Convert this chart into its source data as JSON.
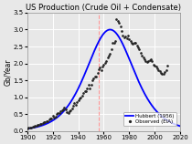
{
  "title": "US Production (Crude Oil + Condensate)",
  "ylabel": "Gb/Year",
  "xlim": [
    1900,
    2020
  ],
  "ylim": [
    0,
    3.5
  ],
  "yticks": [
    0,
    0.5,
    1,
    1.5,
    2,
    2.5,
    3,
    3.5
  ],
  "xticks": [
    1900,
    1920,
    1940,
    1960,
    1980,
    2000,
    2020
  ],
  "hubbert_color": "#0000FF",
  "observed_color": "#222222",
  "vline_color": "#FF9999",
  "vline_x": 1956,
  "background_color": "#e8e8e8",
  "grid_color": "#ffffff",
  "legend_labels": [
    "Hubbert (1956)",
    "Observed (EIA)"
  ],
  "title_fontsize": 6.0,
  "label_fontsize": 5.5,
  "tick_fontsize": 5,
  "hubbert_peak_year": 1965,
  "hubbert_peak_value": 3.0,
  "hubbert_Qtotal": 150.0,
  "observed_data": [
    [
      1900,
      0.08
    ],
    [
      1901,
      0.09
    ],
    [
      1902,
      0.1
    ],
    [
      1903,
      0.11
    ],
    [
      1904,
      0.12
    ],
    [
      1905,
      0.13
    ],
    [
      1906,
      0.14
    ],
    [
      1907,
      0.16
    ],
    [
      1908,
      0.17
    ],
    [
      1909,
      0.18
    ],
    [
      1910,
      0.21
    ],
    [
      1911,
      0.22
    ],
    [
      1912,
      0.23
    ],
    [
      1913,
      0.25
    ],
    [
      1914,
      0.27
    ],
    [
      1915,
      0.28
    ],
    [
      1916,
      0.3
    ],
    [
      1917,
      0.33
    ],
    [
      1918,
      0.36
    ],
    [
      1919,
      0.38
    ],
    [
      1920,
      0.44
    ],
    [
      1921,
      0.4
    ],
    [
      1922,
      0.43
    ],
    [
      1923,
      0.51
    ],
    [
      1924,
      0.53
    ],
    [
      1925,
      0.54
    ],
    [
      1926,
      0.58
    ],
    [
      1927,
      0.62
    ],
    [
      1928,
      0.64
    ],
    [
      1929,
      0.68
    ],
    [
      1930,
      0.64
    ],
    [
      1931,
      0.57
    ],
    [
      1932,
      0.54
    ],
    [
      1933,
      0.58
    ],
    [
      1934,
      0.61
    ],
    [
      1935,
      0.67
    ],
    [
      1936,
      0.74
    ],
    [
      1937,
      0.82
    ],
    [
      1938,
      0.78
    ],
    [
      1939,
      0.85
    ],
    [
      1940,
      0.9
    ],
    [
      1941,
      0.95
    ],
    [
      1942,
      0.99
    ],
    [
      1943,
      1.05
    ],
    [
      1944,
      1.13
    ],
    [
      1945,
      1.17
    ],
    [
      1946,
      1.19
    ],
    [
      1947,
      1.27
    ],
    [
      1948,
      1.36
    ],
    [
      1949,
      1.25
    ],
    [
      1950,
      1.37
    ],
    [
      1951,
      1.51
    ],
    [
      1952,
      1.55
    ],
    [
      1953,
      1.61
    ],
    [
      1954,
      1.61
    ],
    [
      1955,
      1.73
    ],
    [
      1956,
      1.83
    ],
    [
      1957,
      1.87
    ],
    [
      1958,
      1.81
    ],
    [
      1959,
      1.92
    ],
    [
      1960,
      1.97
    ],
    [
      1961,
      2.02
    ],
    [
      1962,
      2.08
    ],
    [
      1963,
      2.17
    ],
    [
      1964,
      2.22
    ],
    [
      1965,
      2.29
    ],
    [
      1966,
      2.43
    ],
    [
      1967,
      2.6
    ],
    [
      1968,
      2.61
    ],
    [
      1969,
      2.65
    ],
    [
      1970,
      3.3
    ],
    [
      1971,
      3.25
    ],
    [
      1972,
      3.2
    ],
    [
      1973,
      3.1
    ],
    [
      1974,
      2.95
    ],
    [
      1975,
      2.82
    ],
    [
      1976,
      2.78
    ],
    [
      1977,
      2.8
    ],
    [
      1978,
      2.75
    ],
    [
      1979,
      2.82
    ],
    [
      1980,
      2.72
    ],
    [
      1981,
      2.65
    ],
    [
      1982,
      2.62
    ],
    [
      1983,
      2.58
    ],
    [
      1984,
      2.62
    ],
    [
      1985,
      2.62
    ],
    [
      1986,
      2.52
    ],
    [
      1987,
      2.47
    ],
    [
      1988,
      2.43
    ],
    [
      1989,
      2.31
    ],
    [
      1990,
      2.23
    ],
    [
      1991,
      2.18
    ],
    [
      1992,
      2.12
    ],
    [
      1993,
      2.07
    ],
    [
      1994,
      2.05
    ],
    [
      1995,
      2.08
    ],
    [
      1996,
      2.1
    ],
    [
      1997,
      2.13
    ],
    [
      1998,
      2.08
    ],
    [
      1999,
      1.95
    ],
    [
      2000,
      1.93
    ],
    [
      2001,
      1.9
    ],
    [
      2002,
      1.85
    ],
    [
      2003,
      1.8
    ],
    [
      2004,
      1.78
    ],
    [
      2005,
      1.72
    ],
    [
      2006,
      1.7
    ],
    [
      2007,
      1.68
    ],
    [
      2008,
      1.75
    ],
    [
      2009,
      1.8
    ],
    [
      2010,
      1.93
    ]
  ]
}
